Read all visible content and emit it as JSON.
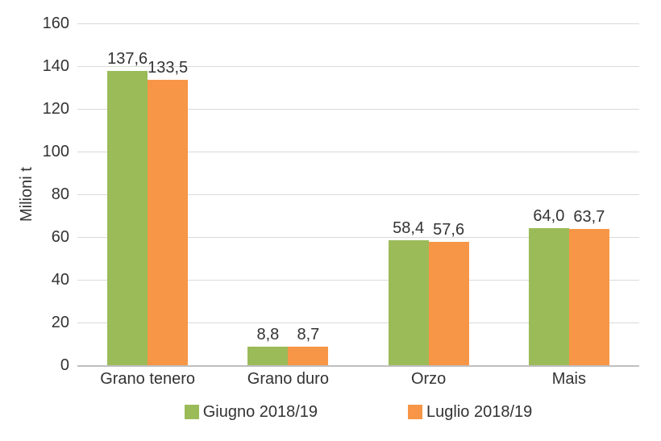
{
  "chart_data": {
    "type": "bar",
    "categories": [
      "Grano tenero",
      "Grano duro",
      "Orzo",
      "Mais"
    ],
    "series": [
      {
        "name": "Giugno 2018/19",
        "color": "#9BBB59",
        "values": [
          137.6,
          8.8,
          58.4,
          64.0
        ],
        "labels": [
          "137,6",
          "8,8",
          "58,4",
          "64,0"
        ]
      },
      {
        "name": "Luglio 2018/19",
        "color": "#F79646",
        "values": [
          133.5,
          8.7,
          57.6,
          63.7
        ],
        "labels": [
          "133,5",
          "8,7",
          "57,6",
          "63,7"
        ]
      }
    ],
    "title": "",
    "xlabel": "",
    "ylabel": "Milioni t",
    "ylim": [
      0,
      160
    ],
    "yticks": [
      0,
      20,
      40,
      60,
      80,
      100,
      120,
      140,
      160
    ],
    "grid": true,
    "legend_position": "bottom"
  },
  "style": {
    "background": "#FFFFFF",
    "grid_color": "#DADADA",
    "axis_color": "#BFBFBF",
    "text_color": "#333333"
  }
}
